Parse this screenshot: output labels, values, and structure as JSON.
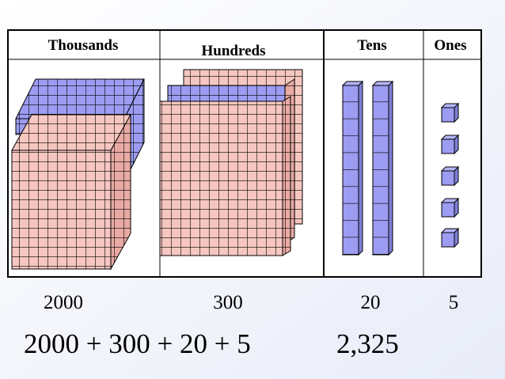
{
  "columns": [
    {
      "header": "Thousands",
      "value": 2000
    },
    {
      "header": "Hundreds",
      "value": 300
    },
    {
      "header": "Tens",
      "value": 20
    },
    {
      "header": "Ones",
      "value": 5
    }
  ],
  "expression": "2000 + 300 + 20 + 5",
  "total": "2,325"
}
